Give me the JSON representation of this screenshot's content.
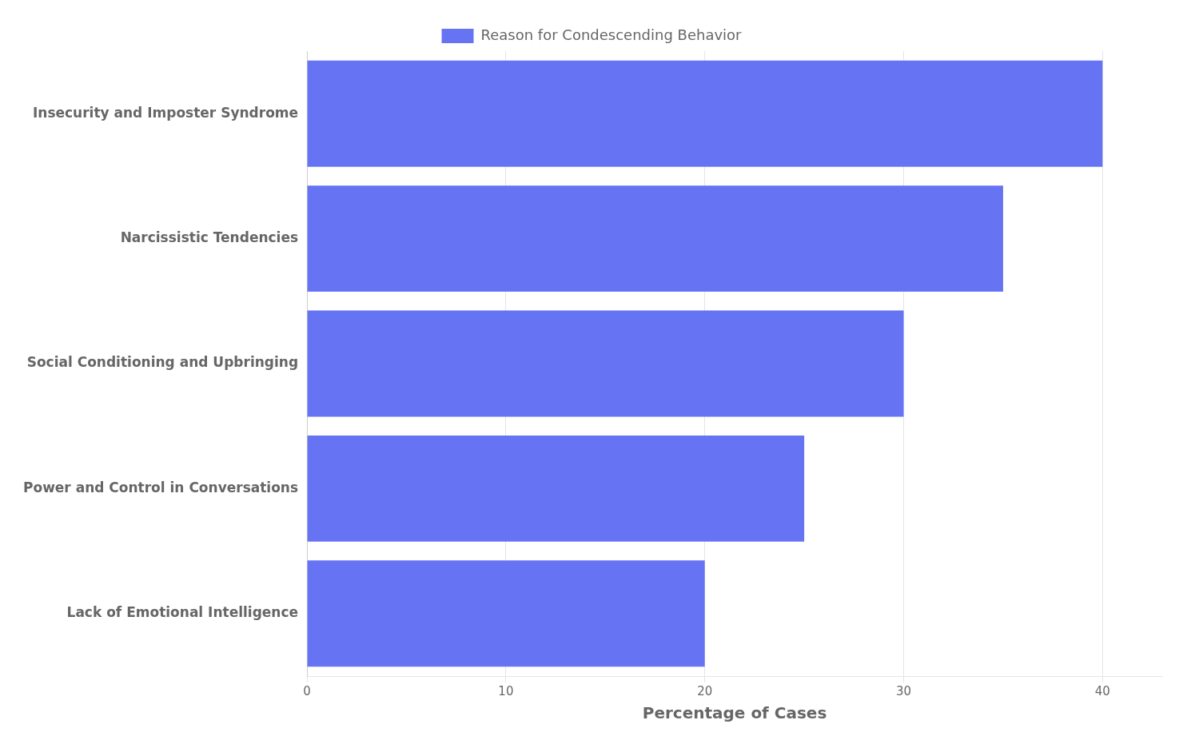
{
  "chart_data": {
    "type": "bar",
    "orientation": "horizontal",
    "categories": [
      "Lack of Emotional Intelligence",
      "Power and Control in Conversations",
      "Social Conditioning and Upbringing",
      "Narcissistic Tendencies",
      "Insecurity and Imposter Syndrome"
    ],
    "series": [
      {
        "name": "Reason for Condescending Behavior",
        "color": "#6674F4",
        "values": [
          20,
          25,
          30,
          35,
          40
        ]
      }
    ],
    "xlabel": "Percentage of Cases",
    "xlim": [
      0,
      43
    ],
    "xticks": [
      0,
      10,
      20,
      30,
      40
    ],
    "grid": true,
    "legend": "top"
  }
}
